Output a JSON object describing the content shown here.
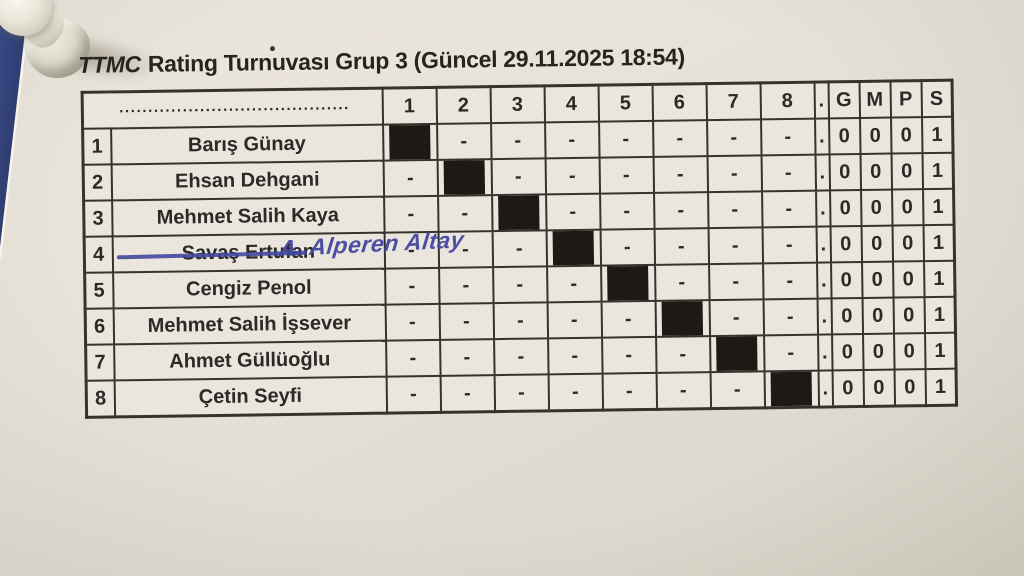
{
  "photo": {
    "colors": {
      "board_blue": "#2e3d74",
      "paper": "#e7e2d8",
      "pen_ink_blue": "#4347a0",
      "blocked_cell_black": "#1d1a15",
      "print_black": "#2b2a26"
    }
  },
  "title": {
    "prefix": "TTMC",
    "rest": "Rating Turnuvası Grup 3 (Güncel 29.11.2025 18:54)"
  },
  "table": {
    "name_header_dots": "........................................",
    "round_headers": [
      "1",
      "2",
      "3",
      "4",
      "5",
      "6",
      "7",
      "8"
    ],
    "dot_header": ".",
    "stat_headers": [
      "G",
      "M",
      "P",
      "S"
    ],
    "row_dot": ".",
    "rows": [
      {
        "num": "1",
        "name": "Barış Günay",
        "struck": false,
        "handwritten": "",
        "cells": [
          "X",
          "-",
          "-",
          "-",
          "-",
          "-",
          "-",
          "-"
        ],
        "g": "0",
        "m": "0",
        "p": "0",
        "s": "1"
      },
      {
        "num": "2",
        "name": "Ehsan Dehgani",
        "struck": false,
        "handwritten": "",
        "cells": [
          "-",
          "X",
          "-",
          "-",
          "-",
          "-",
          "-",
          "-"
        ],
        "g": "0",
        "m": "0",
        "p": "0",
        "s": "1"
      },
      {
        "num": "3",
        "name": "Mehmet Salih Kaya",
        "struck": false,
        "handwritten": "",
        "cells": [
          "-",
          "-",
          "X",
          "-",
          "-",
          "-",
          "-",
          "-"
        ],
        "g": "0",
        "m": "0",
        "p": "0",
        "s": "1"
      },
      {
        "num": "4",
        "name": "Savaş Ertufan",
        "struck": true,
        "handwritten": "A. Alperen Altay",
        "cells": [
          "-",
          "-",
          "-",
          "X",
          "-",
          "-",
          "-",
          "-"
        ],
        "g": "0",
        "m": "0",
        "p": "0",
        "s": "1"
      },
      {
        "num": "5",
        "name": "Cengiz Penol",
        "struck": false,
        "handwritten": "",
        "cells": [
          "-",
          "-",
          "-",
          "-",
          "X",
          "-",
          "-",
          "-"
        ],
        "g": "0",
        "m": "0",
        "p": "0",
        "s": "1"
      },
      {
        "num": "6",
        "name": "Mehmet Salih İşsever",
        "struck": false,
        "handwritten": "",
        "cells": [
          "-",
          "-",
          "-",
          "-",
          "-",
          "X",
          "-",
          "-"
        ],
        "g": "0",
        "m": "0",
        "p": "0",
        "s": "1"
      },
      {
        "num": "7",
        "name": "Ahmet Güllüoğlu",
        "struck": false,
        "handwritten": "",
        "cells": [
          "-",
          "-",
          "-",
          "-",
          "-",
          "-",
          "X",
          "-"
        ],
        "g": "0",
        "m": "0",
        "p": "0",
        "s": "1"
      },
      {
        "num": "8",
        "name": "Çetin Seyfi",
        "struck": false,
        "handwritten": "",
        "cells": [
          "-",
          "-",
          "-",
          "-",
          "-",
          "-",
          "-",
          "X"
        ],
        "g": "0",
        "m": "0",
        "p": "0",
        "s": "1"
      }
    ]
  }
}
